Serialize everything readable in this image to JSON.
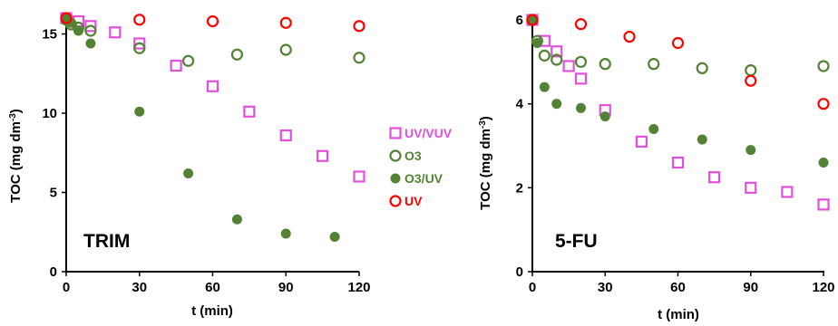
{
  "chart_data": [
    {
      "type": "scatter",
      "panel_label": "TRIM",
      "xlabel": "t (min)",
      "ylabel": "TOC (mg dm-3)",
      "xlim": [
        0,
        120
      ],
      "ylim": [
        0,
        16
      ],
      "xticks": [
        "0",
        "30",
        "60",
        "90",
        "120"
      ],
      "yticks": [
        "0",
        "5",
        "10",
        "15"
      ],
      "series": [
        {
          "name": "UV/VUV",
          "x": [
            0,
            5,
            10,
            20,
            30,
            45,
            60,
            75,
            90,
            105,
            120
          ],
          "y": [
            16.0,
            15.8,
            15.5,
            15.1,
            14.4,
            13.0,
            11.7,
            10.1,
            8.6,
            7.3,
            6.0
          ]
        },
        {
          "name": "O3",
          "x": [
            0,
            2,
            5,
            10,
            30,
            50,
            70,
            90,
            120
          ],
          "y": [
            15.9,
            15.6,
            15.4,
            15.2,
            14.1,
            13.3,
            13.7,
            14.0,
            13.5
          ]
        },
        {
          "name": "O3/UV",
          "x": [
            0,
            2,
            5,
            10,
            30,
            50,
            70,
            90,
            110
          ],
          "y": [
            15.9,
            15.7,
            15.2,
            14.4,
            10.1,
            6.2,
            3.3,
            2.4,
            2.2
          ]
        },
        {
          "name": "UV",
          "x": [
            0,
            30,
            60,
            90,
            120
          ],
          "y": [
            16.0,
            15.9,
            15.8,
            15.7,
            15.5
          ]
        }
      ]
    },
    {
      "type": "scatter",
      "panel_label": "5-FU",
      "xlabel": "t (min)",
      "ylabel": "TOC (mg dm-3)",
      "xlim": [
        0,
        120
      ],
      "ylim": [
        0,
        6
      ],
      "xticks": [
        "0",
        "30",
        "60",
        "90",
        "120"
      ],
      "yticks": [
        "0",
        "2",
        "4",
        "6"
      ],
      "series": [
        {
          "name": "UV/VUV",
          "x": [
            0,
            5,
            10,
            15,
            20,
            30,
            45,
            60,
            75,
            90,
            105,
            120
          ],
          "y": [
            6.0,
            5.5,
            5.25,
            4.9,
            4.6,
            3.85,
            3.1,
            2.6,
            2.25,
            2.0,
            1.9,
            1.6
          ]
        },
        {
          "name": "O3",
          "x": [
            0,
            2,
            5,
            10,
            20,
            30,
            50,
            70,
            90,
            120
          ],
          "y": [
            6.0,
            5.5,
            5.15,
            5.05,
            5.0,
            4.95,
            4.95,
            4.85,
            4.8,
            4.9
          ]
        },
        {
          "name": "O3/UV",
          "x": [
            0,
            2,
            5,
            10,
            20,
            30,
            50,
            70,
            90,
            120
          ],
          "y": [
            6.0,
            5.45,
            4.4,
            4.0,
            3.9,
            3.7,
            3.4,
            3.15,
            2.9,
            2.6
          ]
        },
        {
          "name": "UV",
          "x": [
            0,
            20,
            40,
            60,
            90,
            120
          ],
          "y": [
            6.0,
            5.9,
            5.6,
            5.45,
            4.55,
            4.0
          ]
        }
      ]
    }
  ],
  "legend": {
    "position": "between panels",
    "items": [
      {
        "label": "UV/VUV",
        "marker": "open-square",
        "color": "#E24FDB"
      },
      {
        "label": "O3",
        "marker": "open-circle",
        "color": "#548235"
      },
      {
        "label": "O3/UV",
        "marker": "filled-circle",
        "color": "#548235"
      },
      {
        "label": "UV",
        "marker": "open-circle",
        "color": "#FF0000"
      }
    ]
  },
  "colors": {
    "UV/VUV": "#E24FDB",
    "O3": "#548235",
    "O3/UV": "#548235",
    "UV": "#FF0000"
  }
}
